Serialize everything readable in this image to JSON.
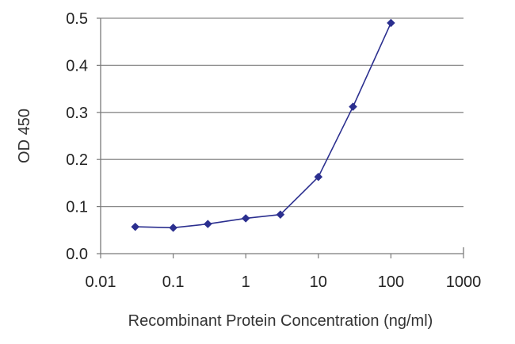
{
  "colors": {
    "series": "#2b2f8f",
    "grid": "#8a8a8a",
    "axis": "#7a7a7a"
  },
  "chart_data": {
    "type": "line",
    "xlabel": "Recombinant Protein Concentration (ng/ml)",
    "ylabel": "OD 450",
    "xscale": "log",
    "xlim": [
      0.01,
      1000
    ],
    "ylim": [
      0,
      0.5
    ],
    "xticks": [
      "0.01",
      "0.1",
      "1",
      "10",
      "100",
      "1000"
    ],
    "yticks": [
      "0.0",
      "0.1",
      "0.2",
      "0.3",
      "0.4",
      "0.5"
    ],
    "grid": "horizontal",
    "legend": "none",
    "series": [
      {
        "x": [
          0.03,
          0.1,
          0.3,
          1,
          3,
          10,
          30,
          100
        ],
        "y": [
          0.057,
          0.055,
          0.063,
          0.075,
          0.083,
          0.163,
          0.312,
          0.49
        ]
      }
    ]
  }
}
